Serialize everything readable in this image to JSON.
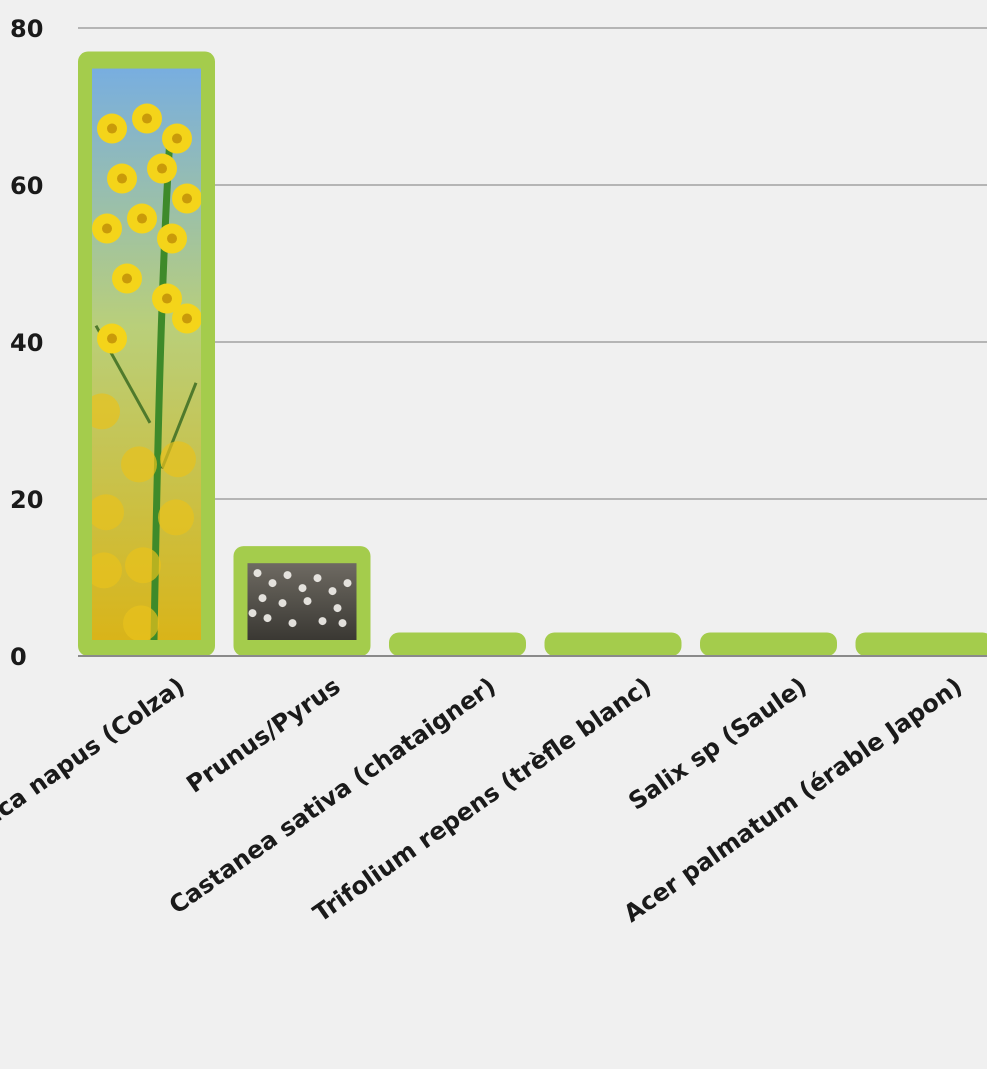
{
  "chart_data": {
    "type": "bar",
    "categories": [
      "Brassica napus (Colza)",
      "Prunus/Pyrus",
      "Castanea sativa (chataigner)",
      "Trifolium repens (trèfle blanc)",
      "Salix sp (Saule)",
      "Acer palmatum (érable Japon)"
    ],
    "values": [
      77,
      14,
      3,
      3,
      3,
      3
    ],
    "ylim": [
      0,
      80
    ],
    "yticks": [
      0,
      20,
      40,
      60,
      80
    ],
    "grid": true,
    "colors": {
      "bar": "#a4cc4c",
      "grid": "#b5b5b5",
      "axis": "#8a8a8a",
      "background": "#f0f0f0"
    }
  }
}
